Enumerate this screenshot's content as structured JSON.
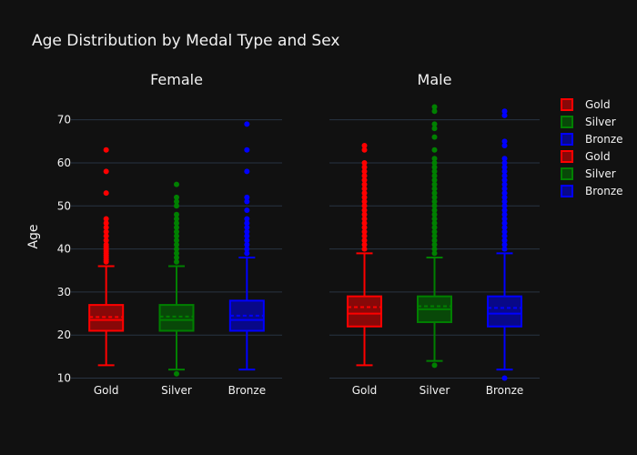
{
  "chart_data": {
    "type": "box",
    "title": "Age Distribution by Medal Type and Sex",
    "ylabel": "Age",
    "xlabel": "",
    "ylim": [
      8,
      75
    ],
    "yticks": [
      10,
      20,
      30,
      40,
      50,
      60,
      70
    ],
    "categories": [
      "Gold",
      "Silver",
      "Bronze"
    ],
    "legend_position": "right",
    "colors": {
      "Gold": "#ff0000",
      "Silver": "#008000",
      "Bronze": "#0000ff"
    },
    "panels": [
      {
        "name": "Female",
        "boxes": [
          {
            "category": "Gold",
            "min": 13,
            "q1": 21,
            "median": 23.5,
            "mean": 24.2,
            "q3": 27,
            "max": 36,
            "outliers": [
              37,
              37.5,
              38,
              38.5,
              39,
              39.5,
              40,
              40.5,
              41,
              42,
              43,
              44,
              45,
              46,
              47,
              53,
              58,
              63
            ]
          },
          {
            "category": "Silver",
            "min": 12,
            "q1": 21,
            "median": 23.5,
            "mean": 24.3,
            "q3": 27,
            "max": 36,
            "outliers": [
              11,
              37,
              38,
              39,
              40,
              41,
              42,
              43,
              44,
              45,
              46,
              47,
              48,
              50,
              51,
              52,
              55
            ]
          },
          {
            "category": "Bronze",
            "min": 12,
            "q1": 21,
            "median": 23.5,
            "mean": 24.5,
            "q3": 28,
            "max": 38,
            "outliers": [
              39,
              40,
              41,
              42,
              43,
              44,
              45,
              46,
              47,
              49,
              51,
              52,
              58,
              63,
              69
            ]
          }
        ]
      },
      {
        "name": "Male",
        "boxes": [
          {
            "category": "Gold",
            "min": 13,
            "q1": 22,
            "median": 25,
            "mean": 26.5,
            "q3": 29,
            "max": 39,
            "outliers": [
              40,
              41,
              42,
              43,
              44,
              45,
              46,
              47,
              48,
              49,
              50,
              51,
              52,
              53,
              54,
              55,
              56,
              57,
              58,
              59,
              60,
              63,
              64
            ]
          },
          {
            "category": "Silver",
            "min": 14,
            "q1": 23,
            "median": 26,
            "mean": 26.7,
            "q3": 29,
            "max": 38,
            "outliers": [
              13,
              39,
              40,
              41,
              42,
              43,
              44,
              45,
              46,
              47,
              48,
              49,
              50,
              51,
              52,
              53,
              54,
              55,
              56,
              57,
              58,
              59,
              60,
              61,
              63,
              66,
              68,
              69,
              72,
              73
            ]
          },
          {
            "category": "Bronze",
            "min": 12,
            "q1": 22,
            "median": 25,
            "mean": 26.3,
            "q3": 29,
            "max": 39,
            "outliers": [
              10,
              40,
              41,
              42,
              43,
              44,
              45,
              46,
              47,
              48,
              49,
              50,
              51,
              52,
              53,
              54,
              55,
              56,
              57,
              58,
              59,
              60,
              61,
              64,
              65,
              71,
              72
            ]
          }
        ]
      }
    ],
    "legend": [
      {
        "label": "Gold",
        "color": "#ff0000"
      },
      {
        "label": "Silver",
        "color": "#008000"
      },
      {
        "label": "Bronze",
        "color": "#0000ff"
      },
      {
        "label": "Gold",
        "color": "#ff0000"
      },
      {
        "label": "Silver",
        "color": "#008000"
      },
      {
        "label": "Bronze",
        "color": "#0000ff"
      }
    ]
  }
}
